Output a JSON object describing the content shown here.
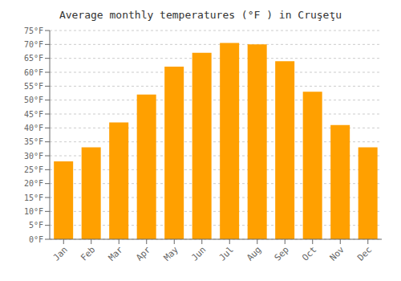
{
  "chart_data": {
    "type": "bar",
    "title": "Average monthly temperatures (°F ) in Cruşeţu",
    "categories": [
      "Jan",
      "Feb",
      "Mar",
      "Apr",
      "May",
      "Jun",
      "Jul",
      "Aug",
      "Sep",
      "Oct",
      "Nov",
      "Dec"
    ],
    "values": [
      28,
      33,
      42,
      52,
      62,
      67,
      70.5,
      70,
      64,
      53,
      41,
      33
    ],
    "color": "#FFA000",
    "ylim": [
      0,
      75
    ],
    "yticks": [
      {
        "value": 0,
        "label": "0°F"
      },
      {
        "value": 5,
        "label": "5°F"
      },
      {
        "value": 10,
        "label": "10°F"
      },
      {
        "value": 15,
        "label": "15°F"
      },
      {
        "value": 20,
        "label": "20°F"
      },
      {
        "value": 25,
        "label": "25°F"
      },
      {
        "value": 30,
        "label": "30°F"
      },
      {
        "value": 35,
        "label": "35°F"
      },
      {
        "value": 40,
        "label": "40°F"
      },
      {
        "value": 45,
        "label": "45°F"
      },
      {
        "value": 50,
        "label": "50°F"
      },
      {
        "value": 55,
        "label": "55°F"
      },
      {
        "value": 60,
        "label": "60°F"
      },
      {
        "value": 65,
        "label": "65°F"
      },
      {
        "value": 70,
        "label": "70°F"
      },
      {
        "value": 75,
        "label": "75°F"
      }
    ],
    "grid": true
  }
}
